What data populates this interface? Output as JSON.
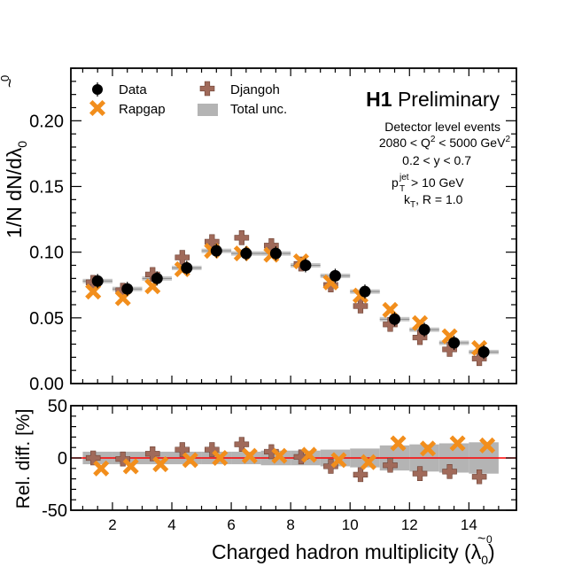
{
  "chart_data": [
    {
      "type": "scatter",
      "panel": "top",
      "ylabel_main": "1/N dN/d",
      "ylabel_sym": "λ",
      "ylabel_tilde": "~",
      "ylabel_sup": "0",
      "ylabel_sub": "0",
      "xlim": [
        0.6,
        15.6
      ],
      "ylim": [
        0,
        0.24
      ],
      "ytick_values": [
        0,
        0.05,
        0.1,
        0.15,
        0.2
      ],
      "ytick_labels": [
        "0.00",
        "0.05",
        "0.10",
        "0.15",
        "0.20"
      ],
      "x": [
        1.5,
        2.5,
        3.5,
        4.5,
        5.5,
        6.5,
        7.5,
        8.5,
        9.5,
        10.5,
        11.5,
        12.5,
        13.5,
        14.5
      ],
      "bin_half_width": 0.5,
      "series": [
        {
          "name": "Data",
          "marker": "filled-circle",
          "color": "#000000",
          "values": [
            0.078,
            0.072,
            0.08,
            0.088,
            0.101,
            0.099,
            0.099,
            0.09,
            0.082,
            0.07,
            0.049,
            0.041,
            0.031,
            0.024
          ]
        },
        {
          "name": "Rapgap",
          "marker": "x-cross",
          "color": "#f28e1c",
          "values": [
            0.07,
            0.065,
            0.074,
            0.087,
            0.101,
            0.099,
            0.098,
            0.093,
            0.077,
            0.067,
            0.056,
            0.046,
            0.036,
            0.027
          ]
        },
        {
          "name": "Djangoh",
          "marker": "plus-cross",
          "color": "#a06a5a",
          "values": [
            0.077,
            0.071,
            0.083,
            0.096,
            0.108,
            0.111,
            0.105,
            0.091,
            0.075,
            0.059,
            0.045,
            0.035,
            0.026,
            0.019
          ]
        }
      ],
      "legend": {
        "placement": "top-left",
        "items": [
          "Data",
          "Rapgap",
          "Djangoh",
          "Total unc."
        ]
      },
      "band_name": "Total unc.",
      "band_color": "#b4b4b4",
      "title_bold": "H1",
      "title_rest": "Preliminary",
      "annotation_1": "Detector level events",
      "annotation_2_prefix": "2080 < Q",
      "annotation_2_sup": "2",
      "annotation_2_mid": " < 5000 GeV",
      "annotation_2_sup2": "2",
      "annotation_3": "0.2 < y < 0.7",
      "annotation_4_p": "p",
      "annotation_4_sup": "jet",
      "annotation_4_sub": "T",
      "annotation_4_rest": " > 10 GeV",
      "annotation_5_k": "k",
      "annotation_5_sub": "T",
      "annotation_5_rest": ", R = 1.0"
    },
    {
      "type": "scatter",
      "panel": "ratio",
      "ylabel": "Rel. diff. [%]",
      "xlabel_main": "Charged hadron multiplicity (",
      "xlabel_sym": "λ",
      "xlabel_tilde": "~",
      "xlabel_sup": "0",
      "xlabel_sub": "0",
      "xlabel_close": ")",
      "xlim": [
        0.6,
        15.6
      ],
      "ylim": [
        -50,
        50
      ],
      "ytick_values": [
        -50,
        0,
        50
      ],
      "ytick_labels": [
        "-50",
        "0",
        "50"
      ],
      "xtick_values": [
        2,
        4,
        6,
        8,
        10,
        12,
        14
      ],
      "xtick_labels": [
        "2",
        "4",
        "6",
        "8",
        "10",
        "12",
        "14"
      ],
      "reference_line": 0,
      "reference_color": "#ff0000",
      "x": [
        1.5,
        2.5,
        3.5,
        4.5,
        5.5,
        6.5,
        7.5,
        8.5,
        9.5,
        10.5,
        11.5,
        12.5,
        13.5,
        14.5
      ],
      "band_half_height": [
        6,
        6,
        6,
        6,
        6,
        6,
        7,
        7,
        8,
        9,
        12,
        13,
        14,
        15
      ],
      "series": [
        {
          "name": "Rapgap",
          "marker": "x-cross",
          "color": "#f28e1c",
          "values": [
            -10,
            -8,
            -6,
            -2,
            0,
            2,
            2,
            3,
            -2,
            -4,
            14,
            9,
            14,
            12
          ]
        },
        {
          "name": "Djangoh",
          "marker": "plus-cross",
          "color": "#a06a5a",
          "values": [
            0,
            -1,
            4,
            8,
            8,
            13,
            6,
            1,
            -8,
            -16,
            -7,
            -15,
            -13,
            -18
          ]
        }
      ]
    }
  ]
}
